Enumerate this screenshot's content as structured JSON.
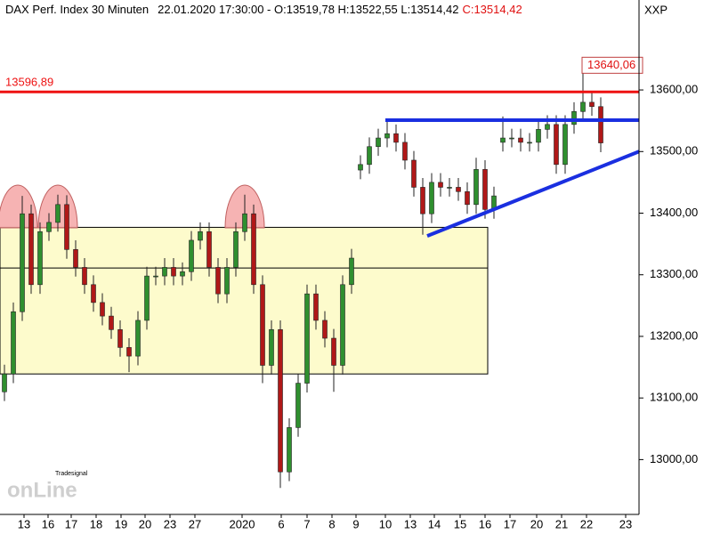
{
  "chart_data": {
    "type": "candlestick",
    "title": "DAX Perf. Index 30 Minuten",
    "info": "22.01.2020 17:30:00 - O:13519,78 H:13522,55 L:13514,42",
    "close_label": "C:13514,42",
    "symbol": "XXP",
    "watermark": [
      "Tradesignal",
      "onLine"
    ],
    "up_color": "#2f8f2f",
    "down_color": "#b01818",
    "xlim": [
      0,
      71.8
    ],
    "ylim": [
      12911,
      13746
    ],
    "xticks": [
      {
        "value": 2.7,
        "label": "13"
      },
      {
        "value": 5.4,
        "label": "16"
      },
      {
        "value": 8.0,
        "label": "17"
      },
      {
        "value": 10.8,
        "label": "18"
      },
      {
        "value": 13.6,
        "label": "19"
      },
      {
        "value": 16.3,
        "label": "20"
      },
      {
        "value": 19.1,
        "label": "23"
      },
      {
        "value": 21.9,
        "label": "27"
      },
      {
        "value": 27.2,
        "label": "2020"
      },
      {
        "value": 31.6,
        "label": "6"
      },
      {
        "value": 34.5,
        "label": "7"
      },
      {
        "value": 37.3,
        "label": "8"
      },
      {
        "value": 40.0,
        "label": "9"
      },
      {
        "value": 43.3,
        "label": "10"
      },
      {
        "value": 46.1,
        "label": "13"
      },
      {
        "value": 48.8,
        "label": "14"
      },
      {
        "value": 51.7,
        "label": "15"
      },
      {
        "value": 54.5,
        "label": "16"
      },
      {
        "value": 57.3,
        "label": "17"
      },
      {
        "value": 60.3,
        "label": "20"
      },
      {
        "value": 63.1,
        "label": "21"
      },
      {
        "value": 65.9,
        "label": "22"
      },
      {
        "value": 70.3,
        "label": "23"
      }
    ],
    "yticks": [
      {
        "value": 13000,
        "label": "13000,00"
      },
      {
        "value": 13100,
        "label": "13100,00"
      },
      {
        "value": 13200,
        "label": "13200,00"
      },
      {
        "value": 13300,
        "label": "13300,00"
      },
      {
        "value": 13400,
        "label": "13400,00"
      },
      {
        "value": 13500,
        "label": "13500,00"
      },
      {
        "value": 13600,
        "label": "13600,00"
      }
    ],
    "x": [
      0.5,
      1.5,
      2.5,
      3.5,
      4.5,
      5.5,
      6.5,
      7.5,
      8.5,
      9.5,
      10.5,
      11.5,
      12.5,
      13.5,
      14.5,
      15.5,
      16.5,
      17.5,
      18.5,
      19.5,
      20.5,
      21.5,
      22.5,
      23.5,
      24.5,
      25.5,
      26.5,
      27.5,
      28.5,
      29.5,
      30.5,
      31.5,
      32.5,
      33.5,
      34.5,
      35.5,
      36.5,
      37.5,
      38.5,
      39.5,
      40.5,
      41.5,
      42.5,
      43.5,
      44.5,
      45.5,
      46.5,
      47.5,
      48.5,
      49.5,
      50.5,
      51.5,
      52.5,
      53.5,
      54.5,
      55.5,
      56.5,
      57.5,
      58.5,
      59.5,
      60.5,
      61.5,
      62.5,
      63.5,
      64.5,
      65.5,
      66.5,
      67.5
    ],
    "open": [
      13110,
      13139,
      13240,
      13399,
      13284,
      13370,
      13385,
      13414,
      13341,
      13312,
      13284,
      13255,
      13233,
      13211,
      13182,
      13168,
      13226,
      13298,
      13298,
      13312,
      13298,
      13305,
      13356,
      13370,
      13312,
      13269,
      13312,
      13370,
      13399,
      13284,
      13153,
      13211,
      12980,
      13052,
      13124,
      13269,
      13226,
      13197,
      13153,
      13284,
      13470,
      13479,
      13508,
      13522,
      13529,
      13515,
      13486,
      13442,
      13399,
      13450,
      13442,
      13442,
      13435,
      13414,
      13471,
      13406,
      13515,
      13522,
      13522,
      13515,
      13515,
      13536,
      13544,
      13479,
      13544,
      13565,
      13580,
      13573
    ],
    "high": [
      13154,
      13255,
      13428,
      13414,
      13385,
      13400,
      13430,
      13429,
      13356,
      13327,
      13299,
      13270,
      13248,
      13226,
      13197,
      13241,
      13313,
      13313,
      13327,
      13327,
      13320,
      13371,
      13385,
      13385,
      13327,
      13327,
      13385,
      13430,
      13414,
      13299,
      13226,
      13226,
      13067,
      13139,
      13284,
      13284,
      13241,
      13212,
      13299,
      13342,
      13494,
      13523,
      13537,
      13550,
      13544,
      13530,
      13501,
      13457,
      13465,
      13465,
      13457,
      13457,
      13450,
      13490,
      13486,
      13443,
      13557,
      13537,
      13537,
      13530,
      13551,
      13559,
      13559,
      13559,
      13580,
      13640.06,
      13595,
      13588
    ],
    "low": [
      13095,
      13124,
      13225,
      13269,
      13269,
      13355,
      13370,
      13326,
      13297,
      13269,
      13240,
      13218,
      13196,
      13167,
      13142,
      13153,
      13211,
      13283,
      13283,
      13283,
      13283,
      13290,
      13341,
      13297,
      13254,
      13254,
      13297,
      13355,
      13269,
      13124,
      13138,
      12954,
      12965,
      13037,
      13109,
      13211,
      13182,
      13110,
      13138,
      13269,
      13455,
      13464,
      13493,
      13507,
      13500,
      13471,
      13427,
      13365,
      13384,
      13427,
      13427,
      13420,
      13399,
      13399,
      13391,
      13391,
      13500,
      13507,
      13500,
      13500,
      13500,
      13521,
      13464,
      13464,
      13529,
      13550,
      13558,
      13499
    ],
    "close": [
      13139,
      13240,
      13399,
      13284,
      13370,
      13385,
      13414,
      13341,
      13312,
      13284,
      13255,
      13233,
      13211,
      13182,
      13168,
      13226,
      13298,
      13298,
      13312,
      13298,
      13305,
      13356,
      13370,
      13312,
      13269,
      13312,
      13370,
      13399,
      13284,
      13153,
      13211,
      12980,
      13052,
      13124,
      13269,
      13226,
      13197,
      13153,
      13284,
      13327,
      13479,
      13508,
      13522,
      13529,
      13515,
      13486,
      13442,
      13399,
      13450,
      13442,
      13442,
      13435,
      13414,
      13471,
      13406,
      13428,
      13522,
      13522,
      13515,
      13515,
      13536,
      13544,
      13479,
      13544,
      13565,
      13580,
      13573,
      13514
    ],
    "level": {
      "value": 13596.89,
      "label": "13596,89",
      "color": "#ee1111"
    },
    "peak_label": "13640,06",
    "box": {
      "x": [
        0,
        54.8
      ],
      "y": [
        13139,
        13377
      ],
      "mid": 13311,
      "color": "#fdfbcc"
    },
    "resistance": {
      "x": [
        43.3,
        71.8
      ],
      "y": 13551,
      "color": "#1a2fe0"
    },
    "support": {
      "x": [
        48.0,
        71.8
      ],
      "y": [
        13363,
        13500
      ],
      "color": "#1a2fe0"
    }
  }
}
